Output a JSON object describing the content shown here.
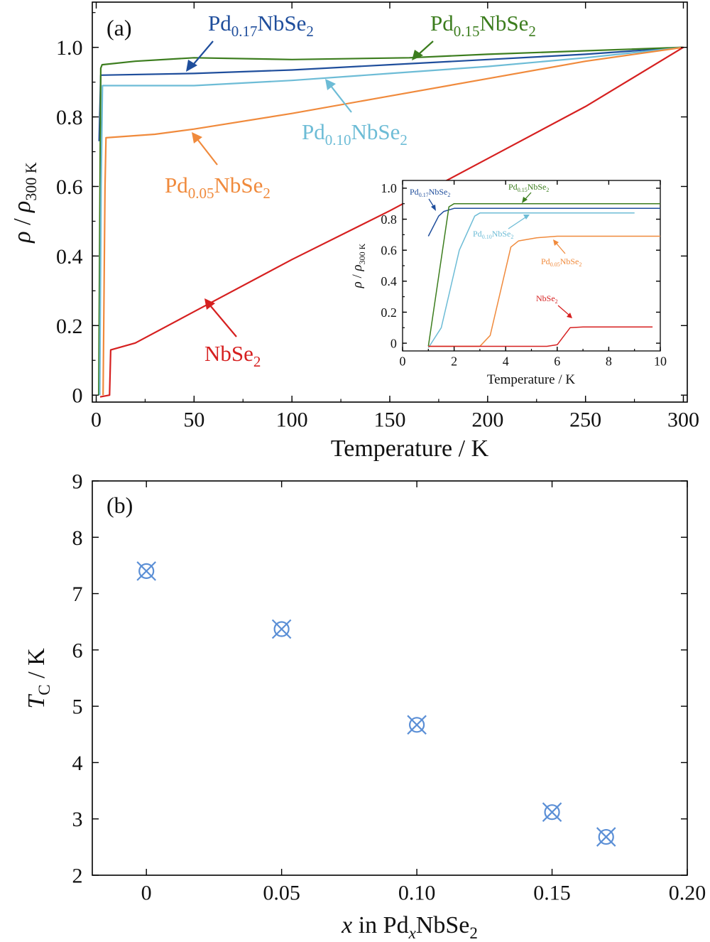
{
  "chart_data": [
    {
      "type": "line",
      "panel_label": "(a)",
      "xlabel": "Temperature / K",
      "ylabel": {
        "rho": "ρ",
        "slash": " / ",
        "rho2": "ρ",
        "sub": "300 K"
      },
      "xlim": [
        -2,
        302
      ],
      "ylim": [
        -0.02,
        1.13
      ],
      "xticks": [
        0,
        50,
        100,
        150,
        200,
        250,
        300
      ],
      "xtick_labels": [
        "0",
        "50",
        "100",
        "150",
        "200",
        "250",
        "300"
      ],
      "yticks": [
        0,
        0.2,
        0.4,
        0.6,
        0.8,
        1.0
      ],
      "ytick_labels": [
        "0",
        "0.2",
        "0.4",
        "0.6",
        "0.8",
        "1.0"
      ],
      "grid": false,
      "series": [
        {
          "name": "Pd0.17NbSe2",
          "label": {
            "a": "Pd",
            "b": "0.17",
            "c": "NbSe",
            "d": "2"
          },
          "color": "#1f4e9c",
          "points": [
            [
              1.5,
              0.73
            ],
            [
              2.3,
              0.92
            ],
            [
              50,
              0.925
            ],
            [
              100,
              0.935
            ],
            [
              150,
              0.95
            ],
            [
              200,
              0.965
            ],
            [
              250,
              0.98
            ],
            [
              300,
              1.0
            ]
          ]
        },
        {
          "name": "Pd0.15NbSe2",
          "label": {
            "a": "Pd",
            "b": "0.15",
            "c": "NbSe",
            "d": "2"
          },
          "color": "#3c7d1e",
          "points": [
            [
              1.3,
              0.0
            ],
            [
              2.3,
              0.94
            ],
            [
              3,
              0.95
            ],
            [
              20,
              0.96
            ],
            [
              50,
              0.97
            ],
            [
              100,
              0.965
            ],
            [
              160,
              0.97
            ],
            [
              200,
              0.98
            ],
            [
              250,
              0.99
            ],
            [
              300,
              1.0
            ]
          ]
        },
        {
          "name": "Pd0.10NbSe2",
          "label": {
            "a": "Pd",
            "b": "0.10",
            "c": "NbSe",
            "d": "2"
          },
          "color": "#6dbcd6",
          "points": [
            [
              1.8,
              0.0
            ],
            [
              2.5,
              0.6
            ],
            [
              3.2,
              0.89
            ],
            [
              50,
              0.89
            ],
            [
              100,
              0.905
            ],
            [
              150,
              0.925
            ],
            [
              200,
              0.945
            ],
            [
              250,
              0.97
            ],
            [
              300,
              1.0
            ]
          ]
        },
        {
          "name": "Pd0.05NbSe2",
          "label": {
            "a": "Pd",
            "b": "0.05",
            "c": "NbSe",
            "d": "2"
          },
          "color": "#f08a3c",
          "points": [
            [
              3.5,
              0.0
            ],
            [
              4.5,
              0.6
            ],
            [
              5,
              0.74
            ],
            [
              30,
              0.75
            ],
            [
              50,
              0.765
            ],
            [
              100,
              0.81
            ],
            [
              150,
              0.86
            ],
            [
              200,
              0.91
            ],
            [
              250,
              0.96
            ],
            [
              300,
              1.0
            ]
          ]
        },
        {
          "name": "NbSe2",
          "label": {
            "a": "",
            "b": "",
            "c": "NbSe",
            "d": "2"
          },
          "color": "#d62020",
          "points": [
            [
              2,
              -0.005
            ],
            [
              6.8,
              0.0
            ],
            [
              7.4,
              0.13
            ],
            [
              20,
              0.15
            ],
            [
              50,
              0.24
            ],
            [
              100,
              0.39
            ],
            [
              150,
              0.53
            ],
            [
              200,
              0.68
            ],
            [
              250,
              0.83
            ],
            [
              300,
              1.0
            ]
          ]
        }
      ],
      "inset": {
        "xlabel": "Temperature / K",
        "ylabel": {
          "rho": "ρ",
          "slash": " / ",
          "rho2": "ρ",
          "sub": "300 K"
        },
        "xlim": [
          0,
          10
        ],
        "ylim": [
          -0.05,
          1.05
        ],
        "xticks": [
          0,
          2,
          4,
          6,
          8,
          10
        ],
        "xtick_labels": [
          "0",
          "2",
          "4",
          "6",
          "8",
          "10"
        ],
        "yticks": [
          0,
          0.2,
          0.4,
          0.6,
          0.8,
          1.0
        ],
        "ytick_labels": [
          "0",
          "0.2",
          "0.4",
          "0.6",
          "0.8",
          "1.0"
        ],
        "series": [
          {
            "name": "Pd0.17NbSe2",
            "color": "#1f4e9c",
            "points": [
              [
                1.0,
                0.69
              ],
              [
                1.4,
                0.82
              ],
              [
                1.6,
                0.85
              ],
              [
                2.0,
                0.87
              ],
              [
                10,
                0.87
              ]
            ]
          },
          {
            "name": "Pd0.15NbSe2",
            "color": "#3c7d1e",
            "points": [
              [
                1.0,
                -0.02
              ],
              [
                1.8,
                0.88
              ],
              [
                2.0,
                0.9
              ],
              [
                10,
                0.9
              ]
            ]
          },
          {
            "name": "Pd0.10NbSe2",
            "color": "#6dbcd6",
            "points": [
              [
                1.0,
                -0.03
              ],
              [
                1.5,
                0.1
              ],
              [
                2.2,
                0.6
              ],
              [
                2.8,
                0.82
              ],
              [
                3.0,
                0.84
              ],
              [
                9.0,
                0.84
              ]
            ]
          },
          {
            "name": "Pd0.05NbSe2",
            "color": "#f08a3c",
            "points": [
              [
                1.0,
                -0.02
              ],
              [
                3.0,
                -0.02
              ],
              [
                3.4,
                0.05
              ],
              [
                4.2,
                0.62
              ],
              [
                4.5,
                0.66
              ],
              [
                5.2,
                0.68
              ],
              [
                6,
                0.69
              ],
              [
                10,
                0.69
              ]
            ]
          },
          {
            "name": "NbSe2",
            "color": "#d62020",
            "points": [
              [
                1.0,
                -0.02
              ],
              [
                5.6,
                -0.02
              ],
              [
                6.0,
                -0.01
              ],
              [
                6.5,
                0.1
              ],
              [
                7,
                0.105
              ],
              [
                9.7,
                0.105
              ]
            ]
          }
        ],
        "labels": {
          "pd017": {
            "a": "Pd",
            "b": "0.17",
            "c": "NbSe",
            "d": "2"
          },
          "pd015": {
            "a": "Pd",
            "b": "0.15",
            "c": "NbSe",
            "d": "2"
          },
          "pd010": {
            "a": "Pd",
            "b": "0.10",
            "c": "NbSe",
            "d": "2"
          },
          "pd005": {
            "a": "Pd",
            "b": "0.05",
            "c": "NbSe",
            "d": "2"
          },
          "nbse2": {
            "a": "",
            "b": "",
            "c": "NbSe",
            "d": "2"
          }
        }
      }
    },
    {
      "type": "scatter",
      "panel_label": "(b)",
      "xlabel": {
        "x": "x",
        "mid": " in Pd",
        "sub": "x",
        "tail": "NbSe",
        "sub2": "2"
      },
      "ylabel": {
        "T": "T",
        "sub": "C",
        "tail": " / K"
      },
      "xlim": [
        -0.02,
        0.2
      ],
      "ylim": [
        2,
        9
      ],
      "xticks": [
        0,
        0.05,
        0.1,
        0.15,
        0.2
      ],
      "xtick_labels": [
        "0",
        "0.05",
        "0.10",
        "0.15",
        "0.20"
      ],
      "yticks": [
        2,
        3,
        4,
        5,
        6,
        7,
        8,
        9
      ],
      "ytick_labels": [
        "2",
        "3",
        "4",
        "5",
        "6",
        "7",
        "8",
        "9"
      ],
      "marker_color": "#5b8fd6",
      "x": [
        0,
        0.05,
        0.1,
        0.15,
        0.17
      ],
      "y": [
        7.4,
        6.37,
        4.67,
        3.12,
        2.68
      ]
    }
  ]
}
